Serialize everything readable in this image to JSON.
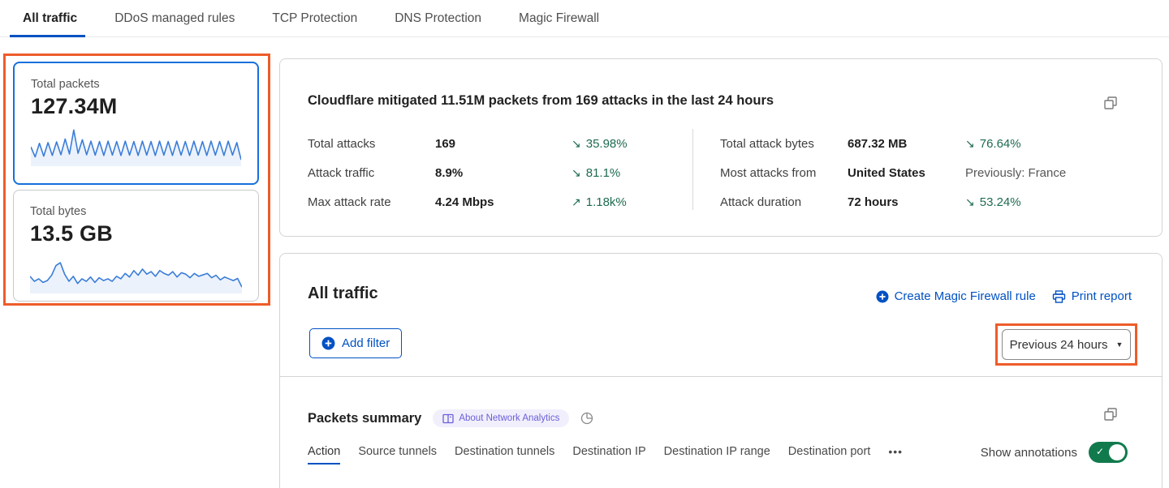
{
  "colors": {
    "accent_blue": "#0051c3",
    "card_selected_border": "#1670dc",
    "annotation_orange": "#ee5c2a",
    "trend_green": "#1e6b4e",
    "toggle_green": "#117a4d",
    "sparkline": "#3b7dd8",
    "badge_purple": "#6a5fd7",
    "badge_bg": "#f1effc"
  },
  "nav_tabs": {
    "items": [
      {
        "label": "All traffic",
        "active": true
      },
      {
        "label": "DDoS managed rules",
        "active": false
      },
      {
        "label": "TCP Protection",
        "active": false
      },
      {
        "label": "DNS Protection",
        "active": false
      },
      {
        "label": "Magic Firewall",
        "active": false
      }
    ]
  },
  "metric_cards": {
    "packets": {
      "label": "Total packets",
      "value": "127.34M",
      "spark": [
        48,
        20,
        58,
        22,
        60,
        24,
        62,
        26,
        70,
        28,
        95,
        30,
        68,
        26,
        64,
        25,
        63,
        24,
        64,
        25,
        63,
        24,
        64,
        25,
        63,
        24,
        64,
        25,
        63,
        24,
        64,
        25,
        63,
        24,
        64,
        25,
        63,
        24,
        64,
        25,
        63,
        24,
        64,
        25,
        63,
        24,
        64,
        25,
        60,
        12
      ]
    },
    "bytes": {
      "label": "Total bytes",
      "value": "13.5 GB",
      "spark": [
        42,
        28,
        35,
        25,
        30,
        45,
        72,
        80,
        48,
        28,
        42,
        22,
        35,
        28,
        40,
        25,
        38,
        30,
        35,
        28,
        42,
        35,
        50,
        40,
        58,
        45,
        62,
        48,
        55,
        42,
        58,
        50,
        45,
        55,
        40,
        52,
        48,
        38,
        50,
        42,
        46,
        50,
        38,
        45,
        32,
        40,
        35,
        30,
        36,
        12
      ]
    }
  },
  "mitigation_summary": {
    "title": "Cloudflare mitigated 11.51M packets from 169 attacks in the last 24 hours",
    "left": [
      {
        "label": "Total attacks",
        "value": "169",
        "arrow": "↘",
        "delta": "35.98%"
      },
      {
        "label": "Attack traffic",
        "value": "8.9%",
        "arrow": "↘",
        "delta": "81.1%"
      },
      {
        "label": "Max attack rate",
        "value": "4.24 Mbps",
        "arrow": "↗",
        "delta": "1.18k%"
      }
    ],
    "right": [
      {
        "label": "Total attack bytes",
        "value": "687.32 MB",
        "arrow": "↘",
        "delta": "76.64%"
      },
      {
        "label": "Most attacks from",
        "value": "United States",
        "arrow": "",
        "delta": "Previously: France"
      },
      {
        "label": "Attack duration",
        "value": "72 hours",
        "arrow": "↘",
        "delta": "53.24%"
      }
    ]
  },
  "traffic_section": {
    "title": "All traffic",
    "create_rule_label": "Create Magic Firewall rule",
    "print_report_label": "Print report",
    "add_filter_label": "Add filter",
    "time_range_value": "Previous 24 hours"
  },
  "packets_summary": {
    "title": "Packets summary",
    "badge_label": "About Network Analytics",
    "tabs": [
      {
        "label": "Action",
        "active": true
      },
      {
        "label": "Source tunnels",
        "active": false
      },
      {
        "label": "Destination tunnels",
        "active": false
      },
      {
        "label": "Destination IP",
        "active": false
      },
      {
        "label": "Destination IP range",
        "active": false
      },
      {
        "label": "Destination port",
        "active": false
      }
    ],
    "more_label": "•••",
    "show_annotations_label": "Show annotations",
    "annotations_on": true
  }
}
